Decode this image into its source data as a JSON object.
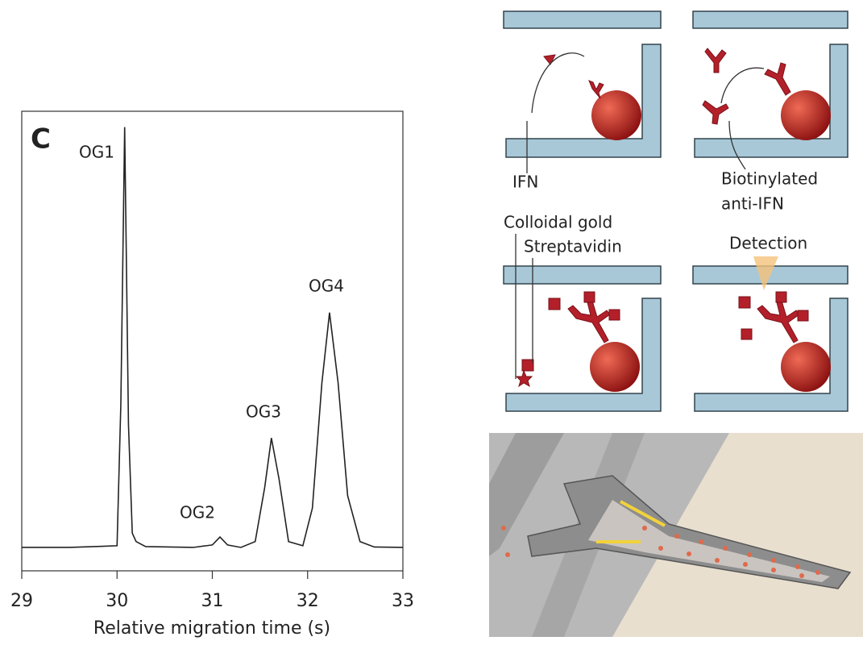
{
  "chart_data": {
    "type": "line",
    "panel_label": "C",
    "xlabel": "Relative migration time (s)",
    "x": [
      29,
      29.5,
      30.0,
      30.04,
      30.08,
      30.12,
      30.16,
      30.2,
      30.3,
      30.8,
      31.0,
      31.08,
      31.16,
      31.3,
      31.45,
      31.55,
      31.62,
      31.7,
      31.8,
      31.95,
      32.05,
      32.15,
      32.23,
      32.32,
      32.42,
      32.55,
      32.7,
      33
    ],
    "series": [
      {
        "color": "#222222",
        "values": [
          0.056,
          0.056,
          0.06,
          0.4,
          1.062,
          0.35,
          0.09,
          0.07,
          0.058,
          0.056,
          0.062,
          0.081,
          0.062,
          0.056,
          0.07,
          0.2,
          0.318,
          0.22,
          0.07,
          0.06,
          0.15,
          0.45,
          0.618,
          0.45,
          0.18,
          0.07,
          0.057,
          0.056
        ]
      }
    ],
    "xlim": [
      29,
      33
    ],
    "xticks": [
      29,
      30,
      31,
      32,
      33
    ],
    "ylim": [
      0,
      1.1
    ],
    "annotations": [
      "OG1",
      "OG2",
      "OG3",
      "OG4"
    ]
  },
  "diagram": {
    "labels": {
      "ifn": "IFN",
      "biotinylated": "Biotinylated",
      "anti_ifn": "anti-IFN",
      "colloidal_gold": "Colloidal gold",
      "streptavidin": "Streptavidin",
      "detection": "Detection"
    }
  }
}
